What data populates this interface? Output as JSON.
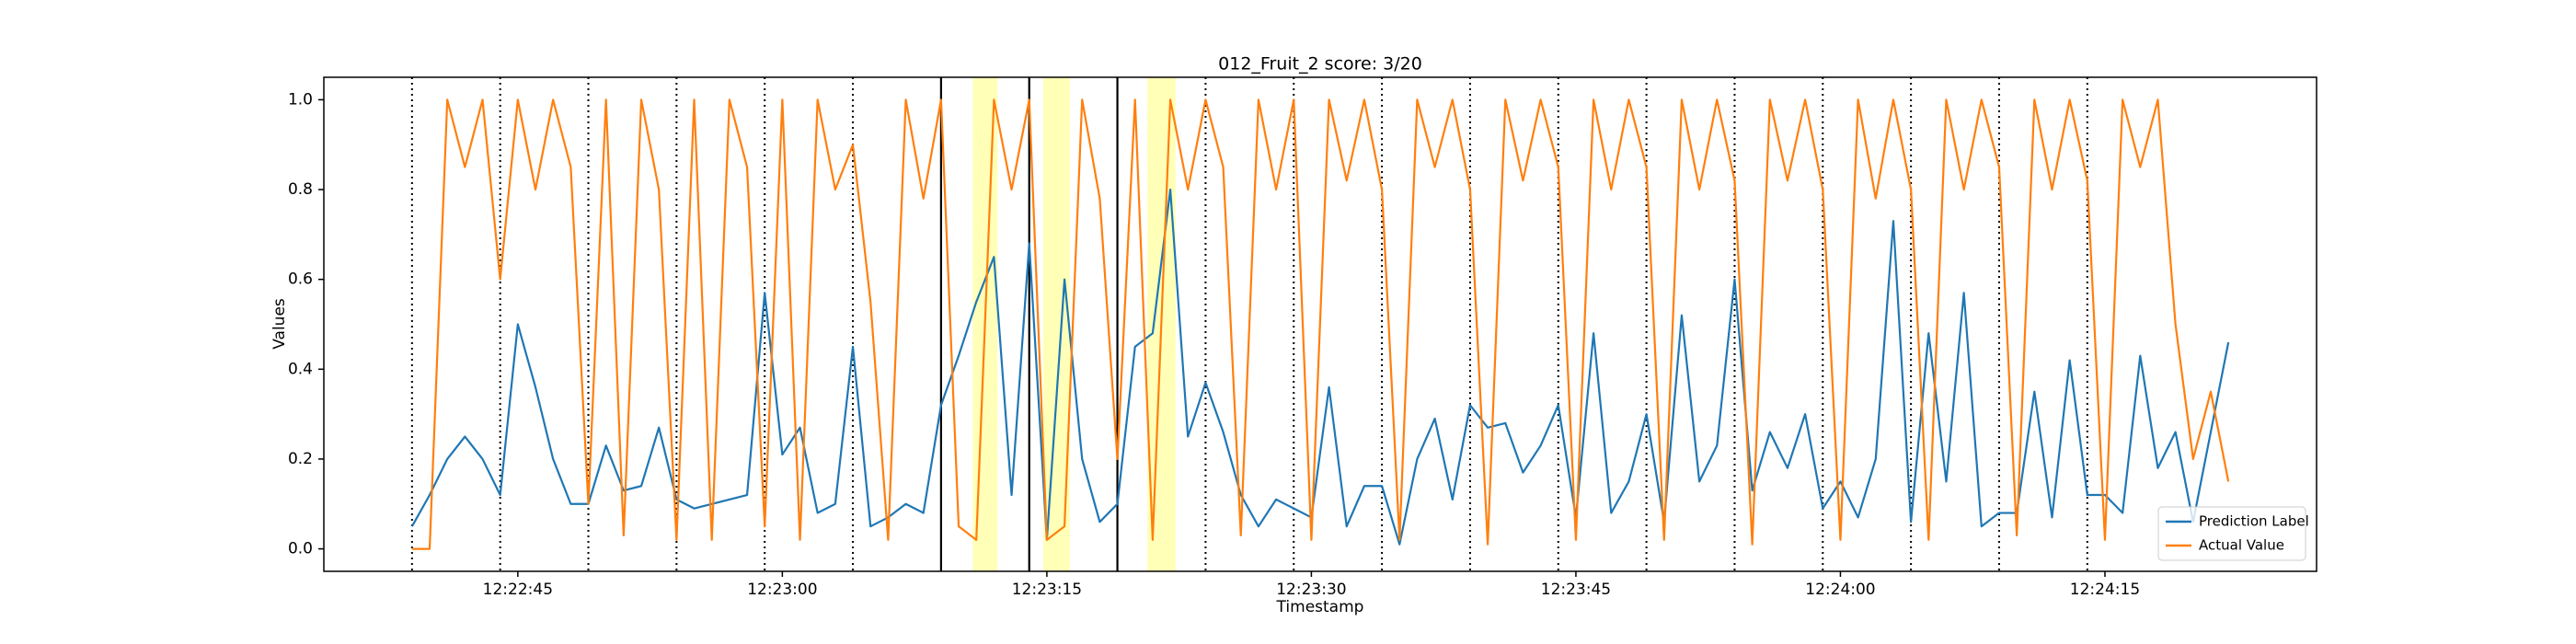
{
  "chart_data": {
    "type": "line",
    "title": "012_Fruit_2 score: 3/20",
    "x_label": "Timestamp",
    "y_label": "Values",
    "xlim": [
      "12:22:34",
      "12:24:27"
    ],
    "xticks": [
      "12:22:45",
      "12:23:00",
      "12:23:15",
      "12:23:30",
      "12:23:45",
      "12:24:00",
      "12:24:15"
    ],
    "ylim": [
      -0.05,
      1.05
    ],
    "yticks": [
      {
        "value": 0,
        "label": "0.0"
      },
      0.2,
      0.4,
      0.6,
      0.8,
      {
        "value": 1,
        "label": "1.0"
      }
    ],
    "legend": "lower right",
    "events": [
      {
        "time": "12:22:39",
        "style": "dotted"
      },
      {
        "time": "12:22:44",
        "style": "dotted"
      },
      {
        "time": "12:22:49",
        "style": "dotted"
      },
      {
        "time": "12:22:54",
        "style": "dotted"
      },
      {
        "time": "12:22:59",
        "style": "dotted"
      },
      {
        "time": "12:23:04",
        "style": "dotted"
      },
      {
        "time": "12:23:09",
        "style": "solid"
      },
      {
        "time": "12:23:14",
        "style": "solid"
      },
      {
        "time": "12:23:19",
        "style": "solid"
      },
      {
        "time": "12:23:24",
        "style": "dotted"
      },
      {
        "time": "12:23:29",
        "style": "dotted"
      },
      {
        "time": "12:23:34",
        "style": "dotted"
      },
      {
        "time": "12:23:39",
        "style": "dotted"
      },
      {
        "time": "12:23:44",
        "style": "dotted"
      },
      {
        "time": "12:23:49",
        "style": "dotted"
      },
      {
        "time": "12:23:54",
        "style": "dotted"
      },
      {
        "time": "12:23:59",
        "style": "dotted"
      },
      {
        "time": "12:24:04",
        "style": "dotted"
      },
      {
        "time": "12:24:09",
        "style": "dotted"
      },
      {
        "time": "12:24:14",
        "style": "dotted"
      }
    ],
    "highlights": [
      [
        "12:23:10.8",
        "12:23:12.2"
      ],
      [
        "12:23:14.8",
        "12:23:16.3"
      ],
      [
        "12:23:20.7",
        "12:23:22.3"
      ]
    ],
    "highlight_color": "#ffff99",
    "x": [
      "12:22:39",
      "12:22:40",
      "12:22:41",
      "12:22:42",
      "12:22:43",
      "12:22:44",
      "12:22:45",
      "12:22:46",
      "12:22:47",
      "12:22:48",
      "12:22:49",
      "12:22:50",
      "12:22:51",
      "12:22:52",
      "12:22:53",
      "12:22:54",
      "12:22:55",
      "12:22:56",
      "12:22:57",
      "12:22:58",
      "12:22:59",
      "12:23:00",
      "12:23:01",
      "12:23:02",
      "12:23:03",
      "12:23:04",
      "12:23:05",
      "12:23:06",
      "12:23:07",
      "12:23:08",
      "12:23:09",
      "12:23:10",
      "12:23:11",
      "12:23:12",
      "12:23:13",
      "12:23:14",
      "12:23:15",
      "12:23:16",
      "12:23:17",
      "12:23:18",
      "12:23:19",
      "12:23:20",
      "12:23:21",
      "12:23:22",
      "12:23:23",
      "12:23:24",
      "12:23:25",
      "12:23:26",
      "12:23:27",
      "12:23:28",
      "12:23:29",
      "12:23:30",
      "12:23:31",
      "12:23:32",
      "12:23:33",
      "12:23:34",
      "12:23:35",
      "12:23:36",
      "12:23:37",
      "12:23:38",
      "12:23:39",
      "12:23:40",
      "12:23:41",
      "12:23:42",
      "12:23:43",
      "12:23:44",
      "12:23:45",
      "12:23:46",
      "12:23:47",
      "12:23:48",
      "12:23:49",
      "12:23:50",
      "12:23:51",
      "12:23:52",
      "12:23:53",
      "12:23:54",
      "12:23:55",
      "12:23:56",
      "12:23:57",
      "12:23:58",
      "12:23:59",
      "12:24:00",
      "12:24:01",
      "12:24:02",
      "12:24:03",
      "12:24:04",
      "12:24:05",
      "12:24:06",
      "12:24:07",
      "12:24:08",
      "12:24:09",
      "12:24:10",
      "12:24:11",
      "12:24:12",
      "12:24:13",
      "12:24:14",
      "12:24:15",
      "12:24:16",
      "12:24:17",
      "12:24:18",
      "12:24:19",
      "12:24:20",
      "12:24:21",
      "12:24:22"
    ],
    "series": [
      {
        "name": "Prediction Label",
        "color": "#1f77b4",
        "values": [
          0.05,
          0.12,
          0.2,
          0.25,
          0.2,
          0.12,
          0.5,
          0.36,
          0.2,
          0.1,
          0.1,
          0.23,
          0.13,
          0.14,
          0.27,
          0.11,
          0.09,
          0.1,
          0.11,
          0.12,
          0.57,
          0.21,
          0.27,
          0.08,
          0.1,
          0.45,
          0.05,
          0.07,
          0.1,
          0.08,
          0.32,
          0.43,
          0.55,
          0.65,
          0.12,
          0.68,
          0.02,
          0.6,
          0.2,
          0.06,
          0.1,
          0.45,
          0.48,
          0.8,
          0.25,
          0.37,
          0.26,
          0.12,
          0.05,
          0.11,
          0.09,
          0.07,
          0.36,
          0.05,
          0.14,
          0.14,
          0.01,
          0.2,
          0.29,
          0.11,
          0.32,
          0.27,
          0.28,
          0.17,
          0.23,
          0.32,
          0.07,
          0.48,
          0.08,
          0.15,
          0.3,
          0.06,
          0.52,
          0.15,
          0.23,
          0.6,
          0.13,
          0.26,
          0.18,
          0.3,
          0.09,
          0.15,
          0.07,
          0.2,
          0.73,
          0.06,
          0.48,
          0.15,
          0.57,
          0.05,
          0.08,
          0.08,
          0.35,
          0.07,
          0.42,
          0.12,
          0.12,
          0.08,
          0.43,
          0.18,
          0.26,
          0.06,
          0.26,
          0.46
        ]
      },
      {
        "name": "Actual Value",
        "color": "#ff7f0e",
        "values": [
          0,
          0,
          1,
          0.85,
          1,
          0.6,
          1,
          0.8,
          1,
          0.85,
          0.1,
          1,
          0.03,
          1,
          0.8,
          0.02,
          1,
          0.02,
          1,
          0.85,
          0.05,
          1,
          0.02,
          1,
          0.8,
          0.9,
          0.55,
          0.02,
          1,
          0.78,
          1,
          0.05,
          0.02,
          1,
          0.8,
          1,
          0.02,
          0.05,
          1,
          0.78,
          0.2,
          1,
          0.02,
          1,
          0.8,
          1,
          0.85,
          0.03,
          1,
          0.8,
          1,
          0.02,
          1,
          0.82,
          1,
          0.8,
          0.02,
          1,
          0.85,
          1,
          0.8,
          0.01,
          1,
          0.82,
          1,
          0.85,
          0.02,
          1,
          0.8,
          1,
          0.85,
          0.02,
          1,
          0.8,
          1,
          0.82,
          0.01,
          1,
          0.82,
          1,
          0.8,
          0.02,
          1,
          0.78,
          1,
          0.8,
          0.02,
          1,
          0.8,
          1,
          0.85,
          0.03,
          1,
          0.8,
          1,
          0.82,
          0.02,
          1,
          0.85,
          1,
          0.5,
          0.2,
          0.35,
          0.15
        ]
      }
    ]
  }
}
